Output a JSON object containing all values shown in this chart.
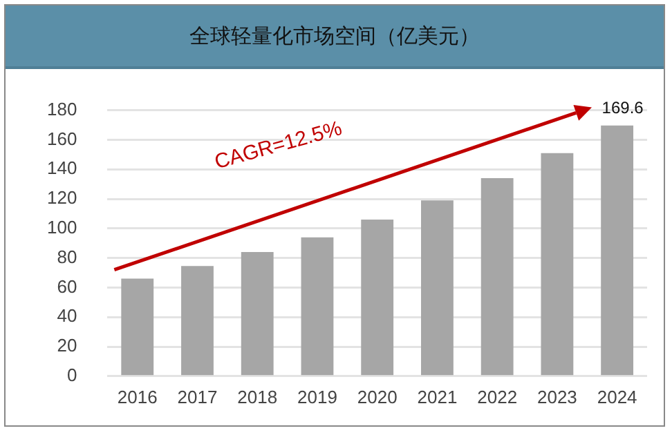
{
  "chart_data": {
    "type": "bar",
    "title": "全球轻量化市场空间（亿美元）",
    "categories": [
      "2016",
      "2017",
      "2018",
      "2019",
      "2020",
      "2021",
      "2022",
      "2023",
      "2024"
    ],
    "values": [
      66,
      74.5,
      84,
      94,
      106,
      119,
      134,
      151,
      169.6
    ],
    "value_labels": [
      null,
      null,
      null,
      null,
      null,
      null,
      null,
      null,
      "169.6"
    ],
    "color": "#a6a6a6",
    "ylim": [
      0,
      180
    ],
    "yticks": [
      0,
      20,
      40,
      60,
      80,
      100,
      120,
      140,
      160,
      180
    ],
    "grid": "y",
    "annotations": [
      "CAGR=12.5%"
    ]
  }
}
